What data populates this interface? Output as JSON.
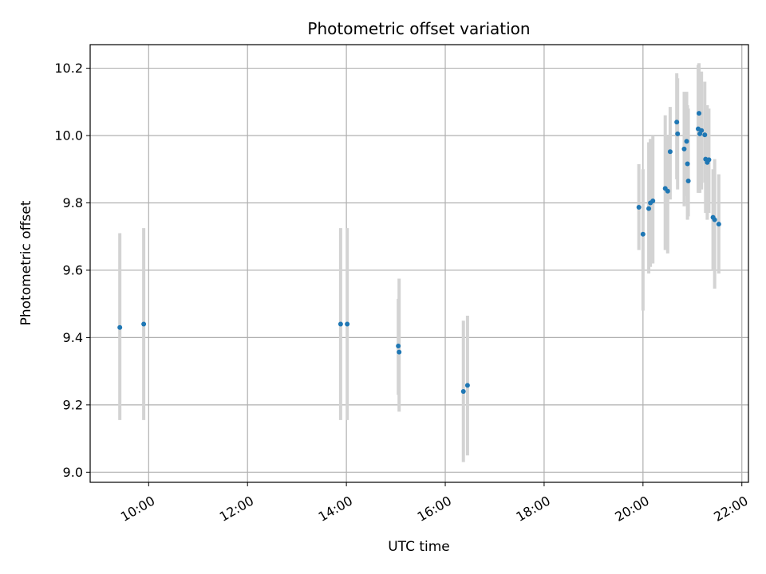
{
  "chart_data": {
    "type": "scatter",
    "title": "Photometric offset variation",
    "xlabel": "UTC time",
    "ylabel": "Photometric offset",
    "xlim": [
      "08:49",
      "22:08"
    ],
    "ylim": [
      8.97,
      10.27
    ],
    "xticks": [
      "10:00",
      "12:00",
      "14:00",
      "16:00",
      "18:00",
      "20:00",
      "22:00"
    ],
    "yticks": [
      "9.0",
      "9.2",
      "9.4",
      "9.6",
      "9.8",
      "10.0",
      "10.2"
    ],
    "grid": true,
    "marker_color": "#1f77b4",
    "errorbar_color": "#d3d3d3",
    "points": [
      {
        "x": "09:25",
        "y": 9.43,
        "low": 9.155,
        "high": 9.71
      },
      {
        "x": "09:54",
        "y": 9.44,
        "low": 9.155,
        "high": 9.725
      },
      {
        "x": "13:53",
        "y": 9.44,
        "low": 9.155,
        "high": 9.725
      },
      {
        "x": "14:01",
        "y": 9.44,
        "low": 9.155,
        "high": 9.725
      },
      {
        "x": "15:03",
        "y": 9.375,
        "low": 9.23,
        "high": 9.515
      },
      {
        "x": "15:04",
        "y": 9.357,
        "low": 9.18,
        "high": 9.575
      },
      {
        "x": "16:22",
        "y": 9.24,
        "low": 9.03,
        "high": 9.45
      },
      {
        "x": "16:27",
        "y": 9.258,
        "low": 9.05,
        "high": 9.465
      },
      {
        "x": "19:55",
        "y": 9.787,
        "low": 9.66,
        "high": 9.915
      },
      {
        "x": "20:00",
        "y": 9.707,
        "low": 9.48,
        "high": 9.9
      },
      {
        "x": "20:07",
        "y": 9.783,
        "low": 9.59,
        "high": 9.98
      },
      {
        "x": "20:09",
        "y": 9.8,
        "low": 9.61,
        "high": 9.99
      },
      {
        "x": "20:12",
        "y": 9.806,
        "low": 9.62,
        "high": 10.0
      },
      {
        "x": "20:27",
        "y": 9.843,
        "low": 9.66,
        "high": 10.06
      },
      {
        "x": "20:30",
        "y": 9.835,
        "low": 9.65,
        "high": 10.0
      },
      {
        "x": "20:33",
        "y": 9.952,
        "low": 9.81,
        "high": 10.085
      },
      {
        "x": "20:41",
        "y": 10.04,
        "low": 9.87,
        "high": 10.185
      },
      {
        "x": "20:42",
        "y": 10.005,
        "low": 9.84,
        "high": 10.17
      },
      {
        "x": "20:50",
        "y": 9.96,
        "low": 9.79,
        "high": 10.13
      },
      {
        "x": "20:53",
        "y": 9.983,
        "low": 9.82,
        "high": 10.13
      },
      {
        "x": "20:54",
        "y": 9.916,
        "low": 9.75,
        "high": 10.09
      },
      {
        "x": "20:55",
        "y": 9.865,
        "low": 9.76,
        "high": 10.08
      },
      {
        "x": "21:07",
        "y": 10.02,
        "low": 9.83,
        "high": 10.21
      },
      {
        "x": "21:08",
        "y": 10.066,
        "low": 9.9,
        "high": 10.215
      },
      {
        "x": "21:09",
        "y": 10.005,
        "low": 9.83,
        "high": 10.18
      },
      {
        "x": "21:11",
        "y": 10.015,
        "low": 9.84,
        "high": 10.19
      },
      {
        "x": "21:15",
        "y": 10.002,
        "low": 9.86,
        "high": 10.16
      },
      {
        "x": "21:16",
        "y": 9.93,
        "low": 9.77,
        "high": 10.085
      },
      {
        "x": "21:18",
        "y": 9.92,
        "low": 9.75,
        "high": 10.09
      },
      {
        "x": "21:20",
        "y": 9.928,
        "low": 9.77,
        "high": 10.08
      },
      {
        "x": "21:25",
        "y": 9.757,
        "low": 9.6,
        "high": 9.9
      },
      {
        "x": "21:27",
        "y": 9.75,
        "low": 9.545,
        "high": 9.93
      },
      {
        "x": "21:32",
        "y": 9.737,
        "low": 9.59,
        "high": 9.885
      }
    ]
  }
}
